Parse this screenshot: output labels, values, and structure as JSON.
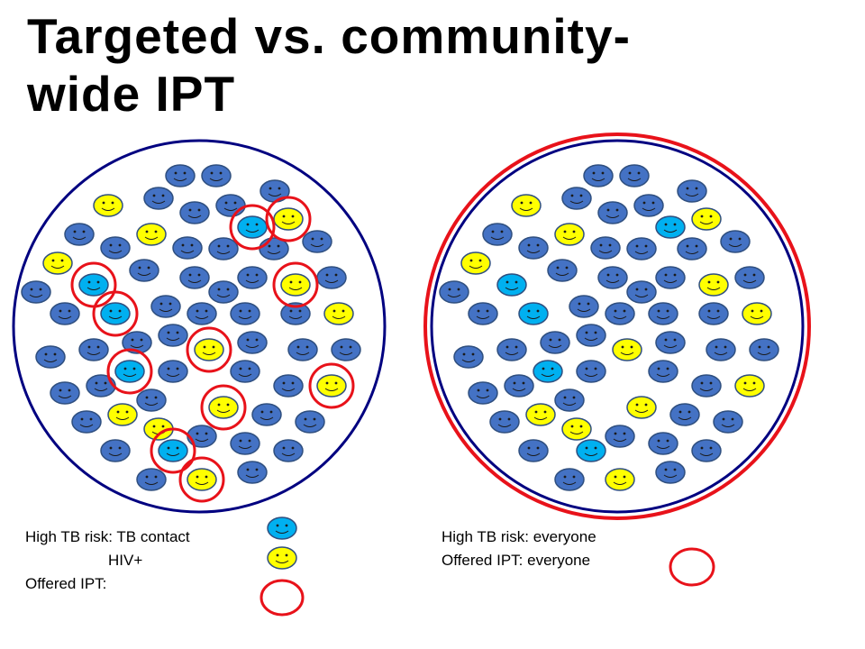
{
  "slide": {
    "title_line1": "Targeted vs. community-",
    "title_line2": "wide IPT"
  },
  "colors": {
    "community_outline": "#000080",
    "ipt_ring": "#e8121a",
    "face_dark": "#4472c4",
    "face_light_blue": "#00b0f0",
    "face_yellow": "#ffff00"
  },
  "legend_left": {
    "tb_contact_label": "High TB risk: TB contact",
    "hiv_label": "HIV+",
    "offered_label": "Offered IPT:"
  },
  "legend_right": {
    "risk_label": "High TB risk: everyone",
    "offered_label": "Offered IPT: everyone"
  },
  "icons": {
    "tb_contact": "light-blue-smiley-icon",
    "hiv": "yellow-smiley-icon",
    "offered_ipt": "red-ring-icon",
    "person": "smiley-face-icon"
  }
}
